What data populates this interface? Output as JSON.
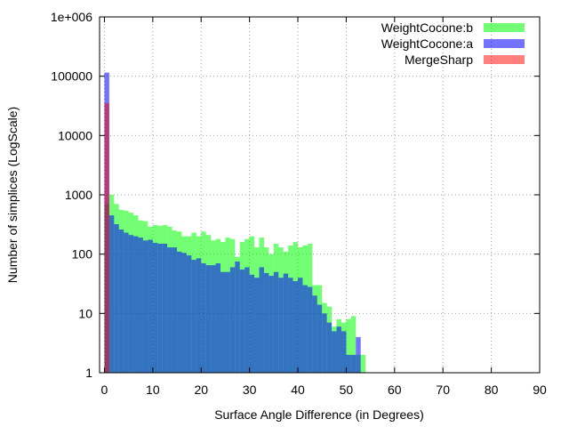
{
  "chart_data": {
    "type": "bar",
    "title": "",
    "xlabel": "Surface Angle Difference (in Degrees)",
    "ylabel": "Number of simplices (LogScale)",
    "xlim": [
      -1,
      90
    ],
    "ylim": [
      1,
      1000000
    ],
    "yscale": "log",
    "grid": true,
    "legend_position": "top-right",
    "x_ticks": [
      "0",
      "10",
      "20",
      "30",
      "40",
      "50",
      "60",
      "70",
      "80",
      "90"
    ],
    "y_ticks": [
      "1",
      "10",
      "100",
      "1000",
      "10000",
      "100000",
      "1e+006"
    ],
    "series": [
      {
        "name": "WeightCocone:b",
        "color": "#00ff00",
        "opacity": 0.55,
        "x_start": [
          0,
          1,
          2,
          3,
          4,
          5,
          6,
          7,
          8,
          9,
          10,
          11,
          12,
          13,
          14,
          15,
          16,
          17,
          18,
          19,
          20,
          21,
          22,
          23,
          24,
          25,
          26,
          27,
          28,
          29,
          30,
          31,
          32,
          33,
          34,
          35,
          36,
          37,
          38,
          39,
          40,
          41,
          42,
          43,
          44,
          45,
          46,
          47,
          48,
          49,
          50,
          51,
          52,
          53
        ],
        "values": [
          700,
          1000,
          700,
          560,
          540,
          500,
          450,
          370,
          360,
          290,
          310,
          300,
          310,
          290,
          250,
          240,
          200,
          200,
          230,
          200,
          240,
          210,
          170,
          180,
          160,
          190,
          180,
          90,
          160,
          180,
          200,
          130,
          190,
          130,
          100,
          150,
          130,
          110,
          140,
          160,
          130,
          140,
          150,
          30,
          30,
          15,
          13,
          6,
          8,
          7,
          8,
          9,
          2,
          2
        ]
      },
      {
        "name": "WeightCocone:a",
        "color": "#0000ff",
        "opacity": 0.55,
        "x_start": [
          0,
          1,
          2,
          3,
          4,
          5,
          6,
          7,
          8,
          9,
          10,
          11,
          12,
          13,
          14,
          15,
          16,
          17,
          18,
          19,
          20,
          21,
          22,
          23,
          24,
          25,
          26,
          27,
          28,
          29,
          30,
          31,
          32,
          33,
          34,
          35,
          36,
          37,
          38,
          39,
          40,
          41,
          42,
          43,
          44,
          45,
          46,
          47,
          48,
          49,
          50,
          51,
          52
        ],
        "values": [
          115000,
          450,
          320,
          260,
          230,
          210,
          200,
          190,
          170,
          175,
          155,
          150,
          150,
          130,
          130,
          110,
          105,
          95,
          80,
          85,
          70,
          65,
          65,
          70,
          50,
          50,
          60,
          75,
          55,
          60,
          45,
          40,
          60,
          48,
          43,
          50,
          40,
          47,
          40,
          35,
          40,
          30,
          28,
          20,
          14,
          10,
          7,
          5,
          6,
          5,
          2,
          2,
          4
        ]
      },
      {
        "name": "MergeSharp",
        "color": "#ff0000",
        "opacity": 0.5,
        "x_start": [
          0
        ],
        "values": [
          35000
        ]
      }
    ]
  }
}
